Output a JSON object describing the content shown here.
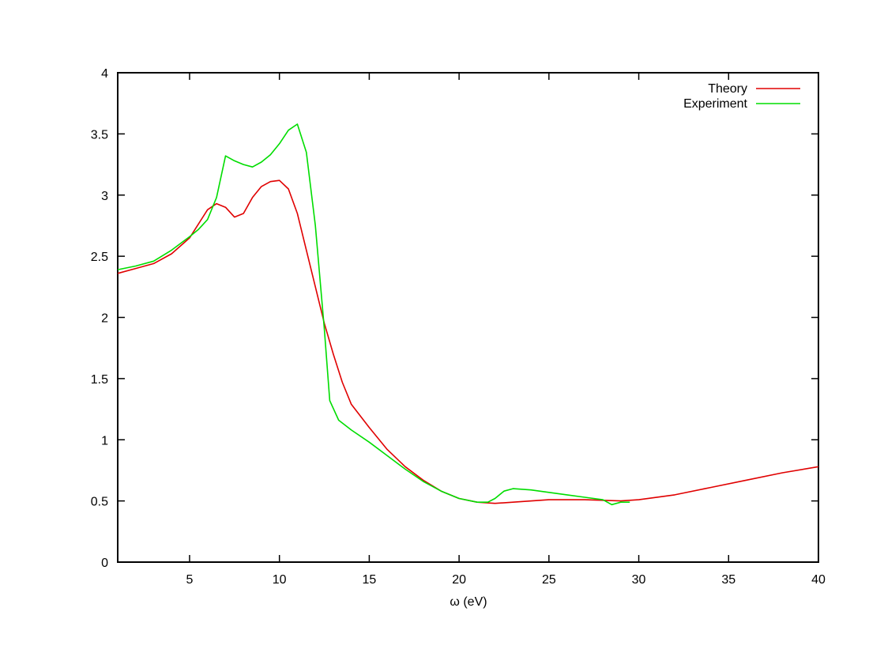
{
  "chart_data": {
    "type": "line",
    "title": "",
    "xlabel": "ω (eV)",
    "ylabel": "",
    "xlim": [
      1,
      40
    ],
    "ylim": [
      0,
      4
    ],
    "xticks": [
      5,
      10,
      15,
      20,
      25,
      30,
      35,
      40
    ],
    "yticks": [
      0,
      0.5,
      1,
      1.5,
      2,
      2.5,
      3,
      3.5,
      4
    ],
    "grid": false,
    "legend": "top-right",
    "series": [
      {
        "name": "Theory",
        "color": "#e00000",
        "points": [
          [
            1,
            2.36
          ],
          [
            2,
            2.4
          ],
          [
            3,
            2.44
          ],
          [
            4,
            2.52
          ],
          [
            5,
            2.65
          ],
          [
            6,
            2.88
          ],
          [
            6.5,
            2.93
          ],
          [
            7.0,
            2.9
          ],
          [
            7.5,
            2.82
          ],
          [
            8.0,
            2.85
          ],
          [
            8.5,
            2.98
          ],
          [
            9.0,
            3.07
          ],
          [
            9.5,
            3.11
          ],
          [
            10.0,
            3.12
          ],
          [
            10.5,
            3.05
          ],
          [
            11.0,
            2.85
          ],
          [
            11.5,
            2.55
          ],
          [
            12.0,
            2.25
          ],
          [
            12.5,
            1.95
          ],
          [
            13.0,
            1.7
          ],
          [
            13.5,
            1.47
          ],
          [
            14.0,
            1.29
          ],
          [
            15.0,
            1.1
          ],
          [
            16.0,
            0.92
          ],
          [
            17.0,
            0.78
          ],
          [
            18.0,
            0.67
          ],
          [
            19.0,
            0.58
          ],
          [
            20.0,
            0.52
          ],
          [
            21.0,
            0.49
          ],
          [
            22.0,
            0.48
          ],
          [
            23.0,
            0.49
          ],
          [
            25.0,
            0.51
          ],
          [
            27.0,
            0.51
          ],
          [
            29.0,
            0.5
          ],
          [
            30.0,
            0.51
          ],
          [
            32.0,
            0.55
          ],
          [
            34.0,
            0.61
          ],
          [
            36.0,
            0.67
          ],
          [
            38.0,
            0.73
          ],
          [
            40.0,
            0.78
          ]
        ]
      },
      {
        "name": "Experiment",
        "color": "#00dd00",
        "points": [
          [
            1,
            2.39
          ],
          [
            2,
            2.42
          ],
          [
            3,
            2.46
          ],
          [
            4,
            2.55
          ],
          [
            5,
            2.66
          ],
          [
            5.5,
            2.72
          ],
          [
            6.0,
            2.8
          ],
          [
            6.5,
            2.98
          ],
          [
            7.0,
            3.32
          ],
          [
            7.5,
            3.28
          ],
          [
            8.0,
            3.25
          ],
          [
            8.5,
            3.23
          ],
          [
            9.0,
            3.27
          ],
          [
            9.5,
            3.33
          ],
          [
            10.0,
            3.42
          ],
          [
            10.5,
            3.53
          ],
          [
            11.0,
            3.58
          ],
          [
            11.5,
            3.35
          ],
          [
            12.0,
            2.75
          ],
          [
            12.5,
            1.9
          ],
          [
            12.8,
            1.32
          ],
          [
            13.3,
            1.16
          ],
          [
            14.0,
            1.08
          ],
          [
            15.0,
            0.98
          ],
          [
            16.0,
            0.87
          ],
          [
            17.0,
            0.76
          ],
          [
            18.0,
            0.66
          ],
          [
            19.0,
            0.58
          ],
          [
            20.0,
            0.52
          ],
          [
            21.0,
            0.49
          ],
          [
            21.6,
            0.49
          ],
          [
            22.0,
            0.52
          ],
          [
            22.5,
            0.58
          ],
          [
            23.0,
            0.6
          ],
          [
            24.0,
            0.59
          ],
          [
            25.0,
            0.57
          ],
          [
            26.0,
            0.55
          ],
          [
            27.0,
            0.53
          ],
          [
            28.0,
            0.51
          ],
          [
            28.5,
            0.47
          ],
          [
            29.0,
            0.49
          ],
          [
            29.5,
            0.49
          ]
        ]
      }
    ]
  }
}
